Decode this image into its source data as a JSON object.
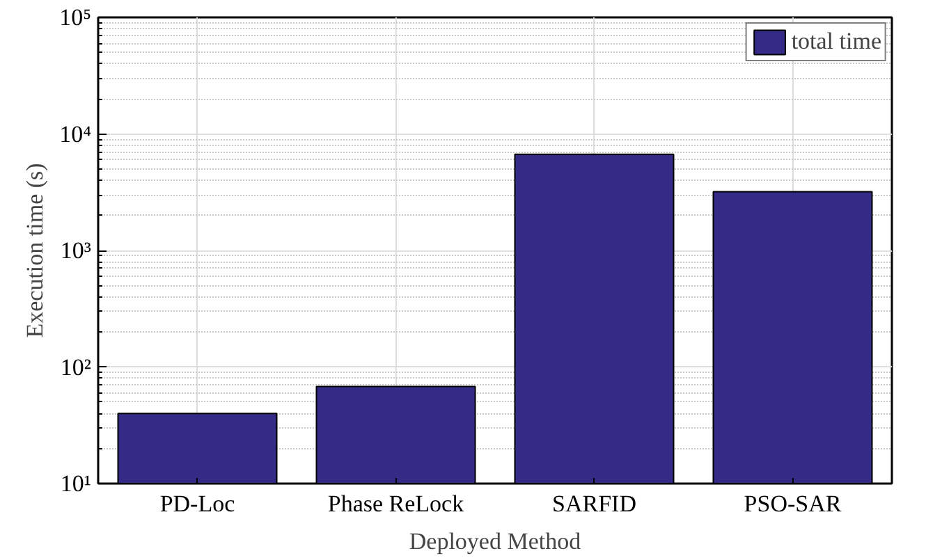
{
  "chart_data": {
    "type": "bar",
    "xlabel": "Deployed Method",
    "ylabel": "Execution time (s)",
    "categories": [
      "PD-Loc",
      "Phase ReLock",
      "SARFID",
      "PSO-SAR"
    ],
    "series": [
      {
        "name": "total time",
        "color": "#352a86",
        "values": [
          40,
          68,
          6700,
          3200
        ]
      }
    ],
    "log": true,
    "ylim": [
      10,
      100000
    ],
    "yticks": [
      {
        "value": 10,
        "label": "10¹"
      },
      {
        "value": 100,
        "label": "10²"
      },
      {
        "value": 1000,
        "label": "10³"
      },
      {
        "value": 10000,
        "label": "10⁴"
      },
      {
        "value": 100000,
        "label": "10⁵"
      }
    ],
    "grid": true,
    "legend": "top right"
  }
}
